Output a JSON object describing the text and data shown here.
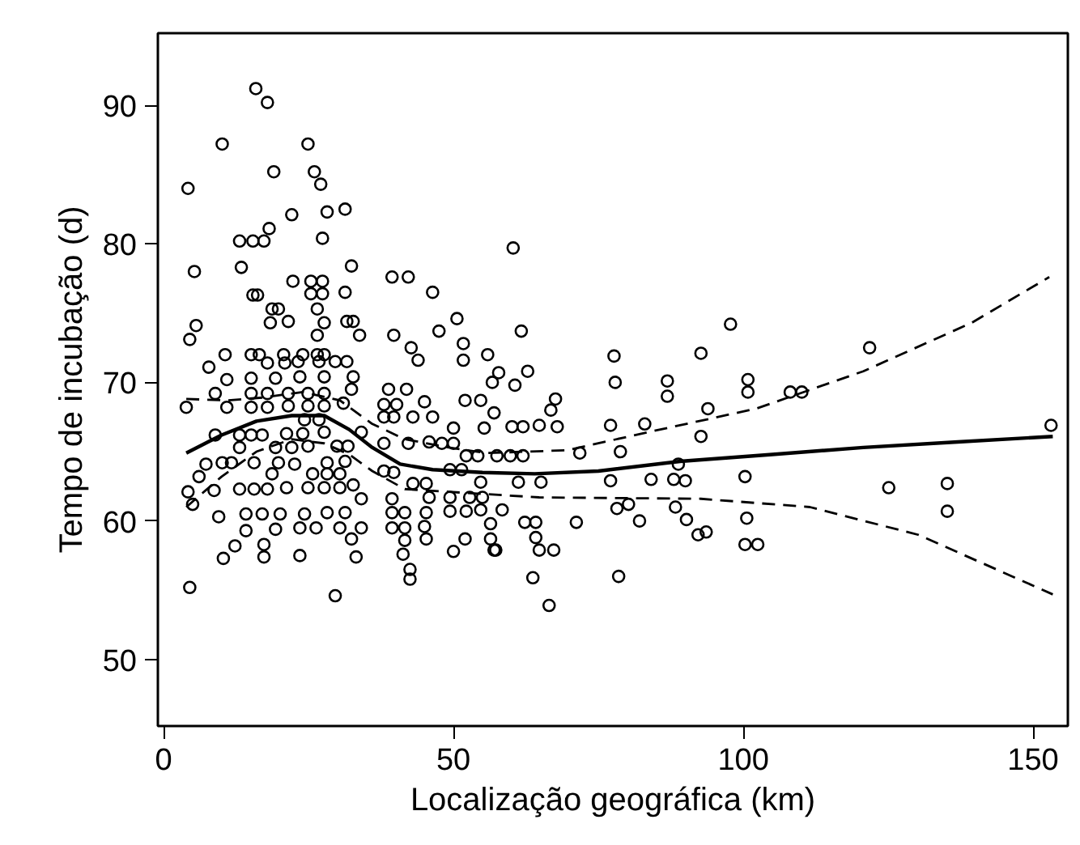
{
  "chart_data": {
    "type": "scatter",
    "xlabel": "Localização geográfica (km)",
    "ylabel": "Tempo de incubação (d)",
    "xlim": [
      -1,
      156
    ],
    "ylim": [
      45.2,
      95.2
    ],
    "xticks": [
      0,
      50,
      100,
      150
    ],
    "yticks": [
      50,
      60,
      70,
      80,
      90
    ],
    "grid": false,
    "series": [
      {
        "color": "#000000",
        "marker": "circle",
        "x": [
          15.9,
          17.9,
          10.1,
          24.9,
          19,
          26,
          27.1,
          4.2,
          22.1,
          28.2,
          31.3,
          18.2,
          13.1,
          15.4,
          17.3,
          27.4,
          60.3,
          5.3,
          13.4,
          32.4,
          22.3,
          25.4,
          27.4,
          39.4,
          42.2,
          46.4,
          15.4,
          16.2,
          25.4,
          27.4,
          31.3,
          26.5,
          18.7,
          19.8,
          5.6,
          4.5,
          18.4,
          21.5,
          27.7,
          31.6,
          32.7,
          33.8,
          39.7,
          47.5,
          50.6,
          51.7,
          61.7,
          26.5,
          42.7,
          55.9,
          10.6,
          15.1,
          16.5,
          20.7,
          24,
          26.5,
          27.7,
          43.9,
          51.7,
          7.8,
          17.9,
          20.9,
          23.2,
          26.8,
          29.6,
          31.6,
          10.9,
          15.1,
          19.3,
          23.5,
          27.7,
          32.7,
          57.8,
          60.6,
          62.8,
          8.9,
          15.1,
          17.9,
          21.5,
          24.9,
          27.7,
          32.4,
          38.8,
          41.9,
          56.7,
          3.9,
          10.9,
          15.1,
          17.9,
          21.5,
          24.9,
          27.7,
          31,
          38,
          40.2,
          45,
          52,
          54.7,
          24.3,
          26.8,
          34.1,
          38,
          39.7,
          43,
          46.4,
          50,
          55.3,
          57,
          60.1,
          62,
          64.8,
          67.9,
          66.8,
          67.6,
          8.9,
          13.1,
          15.1,
          17,
          21.2,
          24,
          27.7,
          29.9,
          31.8,
          13.1,
          19.3,
          22.1,
          24.9,
          38,
          42.2,
          45.8,
          48,
          50,
          52.2,
          54.2,
          57.5,
          59.8,
          62,
          7.3,
          10.1,
          11.7,
          15.6,
          19.8,
          22.6,
          28.2,
          31.3,
          6.1,
          8.7,
          18.7,
          25.7,
          28.2,
          30.4,
          38,
          39.7,
          49.4,
          51.4,
          54.7,
          61.2,
          65.1,
          4.2,
          5,
          13.1,
          15.6,
          17.9,
          21.2,
          24.9,
          27.7,
          30.4,
          32.7,
          34.1,
          43,
          45.3,
          39.4,
          45.8,
          49.4,
          52.8,
          55,
          58.4,
          9.5,
          14.2,
          17,
          20.1,
          24.3,
          28.2,
          31.3,
          39.4,
          41.6,
          45.3,
          49.4,
          52.2,
          54.7,
          62.3,
          64.2,
          14.2,
          19.3,
          23.5,
          26.3,
          30.4,
          34.1,
          39.4,
          41.6,
          45,
          56.4,
          64.2,
          12.3,
          17.3,
          32.4,
          41.6,
          45.3,
          50,
          52,
          56.4,
          64.8,
          67.3,
          10.3,
          17.3,
          23.5,
          33.2,
          41.3,
          42.5,
          42.5,
          57.3,
          57,
          4.5,
          29.6,
          63.7,
          66.5,
          71.2,
          71.8,
          77.7,
          77.9,
          77.1,
          78.8,
          77.1,
          78.2,
          80.2,
          78.5,
          83,
          84.1,
          82.1,
          86.9,
          86.9,
          88.8,
          88,
          90,
          88.3,
          90.2,
          92.2,
          93.6,
          92.7,
          93.9,
          92.7,
          97.8,
          100.8,
          100.8,
          100.3,
          100.6,
          100.3,
          102.5,
          108.1,
          110.1,
          121.8,
          125.1,
          135.2,
          135.2,
          153.1
        ],
        "values": [
          91.2,
          90.2,
          87.2,
          87.2,
          85.2,
          85.2,
          84.3,
          84,
          82.1,
          82.3,
          82.5,
          81.1,
          80.2,
          80.2,
          80.2,
          80.4,
          79.7,
          78,
          78.3,
          78.4,
          77.3,
          77.3,
          77.3,
          77.6,
          77.6,
          76.5,
          76.3,
          76.3,
          76.4,
          76.4,
          76.5,
          75.3,
          75.3,
          75.3,
          74.1,
          73.1,
          74.3,
          74.4,
          74.3,
          74.4,
          74.4,
          73.4,
          73.4,
          73.7,
          74.6,
          72.8,
          73.7,
          73.4,
          72.5,
          72,
          72,
          72,
          72,
          72,
          72,
          72,
          72,
          71.6,
          71.6,
          71.1,
          71.4,
          71.4,
          71.5,
          71.5,
          71.5,
          71.5,
          70.2,
          70.3,
          70.3,
          70.4,
          70.4,
          70.4,
          70.7,
          69.8,
          70.8,
          69.2,
          69.2,
          69.2,
          69.2,
          69.2,
          69.2,
          69.5,
          69.5,
          69.5,
          70,
          68.2,
          68.2,
          68.2,
          68.2,
          68.3,
          68.3,
          68.3,
          68.5,
          68.4,
          68.4,
          68.6,
          68.7,
          68.7,
          67.3,
          67.3,
          66.4,
          67.5,
          67.5,
          67.5,
          67.5,
          66.7,
          66.7,
          67.8,
          66.8,
          66.8,
          66.9,
          66.8,
          68,
          68.8,
          66.2,
          66.2,
          66.2,
          66.2,
          66.3,
          66.3,
          66.4,
          65.4,
          65.4,
          65.3,
          65.3,
          65.3,
          65.4,
          65.6,
          65.6,
          65.7,
          65.6,
          65.6,
          64.7,
          64.7,
          64.7,
          64.7,
          64.7,
          64.1,
          64.2,
          64.2,
          64.2,
          64.2,
          64.1,
          64.2,
          64.3,
          63.2,
          62.2,
          63.4,
          63.4,
          63.4,
          63.4,
          63.6,
          63.5,
          63.7,
          63.7,
          62.8,
          62.8,
          62.8,
          62.1,
          61.2,
          62.3,
          62.3,
          62.3,
          62.4,
          62.4,
          62.4,
          62.4,
          62.6,
          61.6,
          62.7,
          62.7,
          61.6,
          61.7,
          61.7,
          61.7,
          61.7,
          60.8,
          60.3,
          60.5,
          60.5,
          60.5,
          60.5,
          60.6,
          60.6,
          60.6,
          60.6,
          60.6,
          60.7,
          60.7,
          60.8,
          59.9,
          59.9,
          59.3,
          59.4,
          59.5,
          59.5,
          59.5,
          59.5,
          59.5,
          59.5,
          59.6,
          59.8,
          58.8,
          58.2,
          58.3,
          58.7,
          58.6,
          58.7,
          57.8,
          58.7,
          58.7,
          57.9,
          57.9,
          57.3,
          57.4,
          57.5,
          57.4,
          57.6,
          56.5,
          55.8,
          57.9,
          57.9,
          55.2,
          54.6,
          55.9,
          53.9,
          59.9,
          64.9,
          71.9,
          70,
          66.9,
          65,
          62.9,
          60.9,
          61.2,
          56,
          67,
          63,
          60,
          70.1,
          69,
          64.1,
          63,
          62.9,
          61,
          60.1,
          59,
          59.2,
          72.1,
          68.1,
          66.1,
          74.2,
          70.2,
          69.3,
          63.2,
          60.2,
          58.3,
          58.3,
          69.3,
          69.3,
          72.5,
          62.4,
          62.7,
          60.7,
          66.9
        ]
      },
      {
        "type": "line",
        "color": "#000000",
        "line_style": "solid",
        "x": [
          3.9,
          10,
          16,
          22.1,
          27.7,
          32,
          36,
          40.8,
          46.4,
          55,
          64,
          75,
          89.1,
          105,
          120.7,
          137,
          153.4
        ],
        "values": [
          64.9,
          66.2,
          67.2,
          67.6,
          67.6,
          66.6,
          65.3,
          64.1,
          63.7,
          63.5,
          63.4,
          63.6,
          64.3,
          64.8,
          65.3,
          65.7,
          66.1
        ]
      },
      {
        "type": "line",
        "color": "#000000",
        "line_style": "dashed",
        "x": [
          3.9,
          10.9,
          17,
          24,
          30.4,
          36,
          41.6,
          49.2,
          55.6,
          69.6,
          83.5,
          102.2,
          120.7,
          139.4,
          152.8
        ],
        "values": [
          68.8,
          68.7,
          68.9,
          69.3,
          68.7,
          67,
          65.9,
          65.3,
          64.9,
          65.1,
          66.4,
          68.1,
          70.8,
          74.3,
          77.6
        ]
      },
      {
        "type": "line",
        "color": "#000000",
        "line_style": "dashed",
        "x": [
          3.9,
          10,
          16,
          22.1,
          27.7,
          32,
          36,
          41.6,
          49.2,
          64.8,
          92.7,
          111.5,
          130.2,
          153.4
        ],
        "values": [
          61,
          63.2,
          65,
          65.9,
          65.6,
          64.8,
          63.6,
          62.3,
          62.1,
          61.7,
          61.6,
          61,
          59,
          54.7
        ]
      }
    ]
  }
}
